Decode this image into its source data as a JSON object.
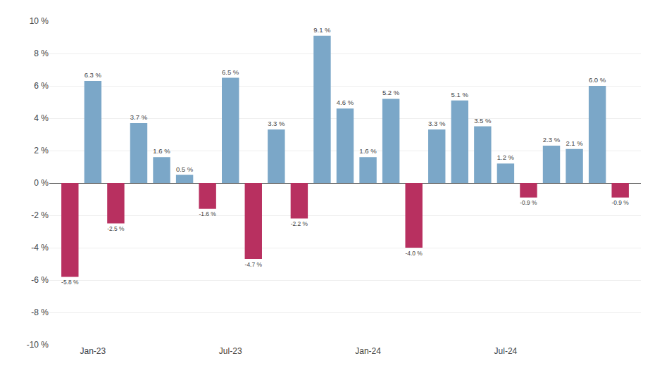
{
  "chart_data": {
    "type": "bar",
    "categories": [
      null,
      "Jan-23",
      null,
      null,
      null,
      null,
      null,
      "Jul-23",
      null,
      null,
      null,
      null,
      null,
      "Jan-24",
      null,
      null,
      null,
      null,
      null,
      "Jul-24",
      null,
      null,
      null,
      null,
      null
    ],
    "values": [
      -5.8,
      6.3,
      -2.5,
      3.7,
      1.6,
      0.5,
      -1.6,
      6.5,
      -4.7,
      3.3,
      -2.2,
      9.1,
      4.6,
      1.6,
      5.2,
      -4.0,
      3.3,
      5.1,
      3.5,
      1.2,
      -0.9,
      2.3,
      2.1,
      6.0,
      -0.9
    ],
    "value_labels": [
      "-5.8 %",
      "6.3 %",
      "-2.5 %",
      "3.7 %",
      "1.6 %",
      "0.5 %",
      "-1.6 %",
      "6.5 %",
      "-4.7 %",
      "3.3 %",
      "-2.2 %",
      "9.1 %",
      "4.6 %",
      "1.6 %",
      "5.2 %",
      "-4.0 %",
      "3.3 %",
      "5.1 %",
      "3.5 %",
      "1.2 %",
      "-0.9 %",
      "2.3 %",
      "2.1 %",
      "6.0 %",
      "-0.9 %"
    ],
    "data_labels": true,
    "colors": [
      "#B83060",
      "#7BA7C8",
      "#B83060",
      "#7BA7C8",
      "#7BA7C8",
      "#7BA7C8",
      "#B83060",
      "#7BA7C8",
      "#B83060",
      "#7BA7C8",
      "#B83060",
      "#7BA7C8",
      "#7BA7C8",
      "#7BA7C8",
      "#7BA7C8",
      "#B83060",
      "#7BA7C8",
      "#7BA7C8",
      "#7BA7C8",
      "#7BA7C8",
      "#B83060",
      "#7BA7C8",
      "#7BA7C8",
      "#7BA7C8",
      "#B83060"
    ],
    "ylim": [
      -10,
      10
    ],
    "yticks": [
      {
        "value": -10,
        "label": "-10 %"
      },
      {
        "value": -8,
        "label": "-8 %"
      },
      {
        "value": -6,
        "label": "-6 %"
      },
      {
        "value": -4,
        "label": "-4 %"
      },
      {
        "value": -2,
        "label": "-2 %"
      },
      {
        "value": 0,
        "label": "0 %"
      },
      {
        "value": 2,
        "label": "2 %"
      },
      {
        "value": 4,
        "label": "4 %"
      },
      {
        "value": 6,
        "label": "6 %"
      },
      {
        "value": 8,
        "label": "8 %"
      },
      {
        "value": 10,
        "label": "10 %"
      }
    ],
    "grid": true
  }
}
